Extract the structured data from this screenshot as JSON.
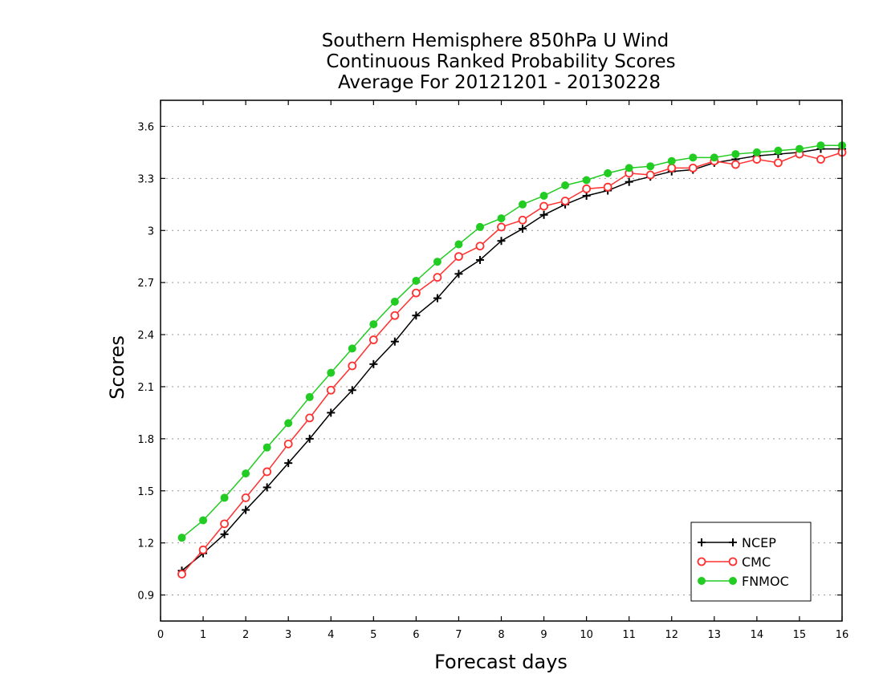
{
  "chart_data": {
    "type": "line",
    "title_lines": [
      "Southern Hemisphere 850hPa U Wind",
      "Continuous Ranked Probability Scores",
      "Average For 20121201 - 20130228"
    ],
    "xlabel": "Forecast days",
    "ylabel": "Scores",
    "xlim": [
      0,
      16
    ],
    "ylim": [
      0.75,
      3.75
    ],
    "xticks": [
      "0",
      "1",
      "2",
      "3",
      "4",
      "5",
      "6",
      "7",
      "8",
      "9",
      "10",
      "11",
      "12",
      "13",
      "14",
      "15",
      "16"
    ],
    "yticks": [
      "0.9",
      "1.2",
      "1.5",
      "1.8",
      "2.1",
      "2.4",
      "2.7",
      "3",
      "3.3",
      "3.6"
    ],
    "grid": true,
    "legend_position": "bottom-right",
    "x": [
      0.5,
      1,
      1.5,
      2,
      2.5,
      3,
      3.5,
      4,
      4.5,
      5,
      5.5,
      6,
      6.5,
      7,
      7.5,
      8,
      8.5,
      9,
      9.5,
      10,
      10.5,
      11,
      11.5,
      12,
      12.5,
      13,
      13.5,
      14,
      14.5,
      15,
      15.5,
      16
    ],
    "series": [
      {
        "name": "NCEP",
        "color": "#000000",
        "marker": "plus",
        "values": [
          1.04,
          1.14,
          1.25,
          1.39,
          1.52,
          1.66,
          1.8,
          1.95,
          2.08,
          2.23,
          2.36,
          2.51,
          2.61,
          2.75,
          2.83,
          2.94,
          3.01,
          3.09,
          3.15,
          3.2,
          3.23,
          3.28,
          3.31,
          3.34,
          3.35,
          3.39,
          3.41,
          3.43,
          3.44,
          3.45,
          3.47,
          3.47
        ]
      },
      {
        "name": "CMC",
        "color": "#ff3030",
        "marker": "open-circle",
        "values": [
          1.02,
          1.16,
          1.31,
          1.46,
          1.61,
          1.77,
          1.92,
          2.08,
          2.22,
          2.37,
          2.51,
          2.64,
          2.73,
          2.85,
          2.91,
          3.02,
          3.06,
          3.14,
          3.17,
          3.24,
          3.25,
          3.33,
          3.32,
          3.36,
          3.36,
          3.4,
          3.38,
          3.41,
          3.39,
          3.44,
          3.41,
          3.45
        ]
      },
      {
        "name": "FNMOC",
        "color": "#22cc22",
        "marker": "filled-circle",
        "values": [
          1.23,
          1.33,
          1.46,
          1.6,
          1.75,
          1.89,
          2.04,
          2.18,
          2.32,
          2.46,
          2.59,
          2.71,
          2.82,
          2.92,
          3.02,
          3.07,
          3.15,
          3.2,
          3.26,
          3.29,
          3.33,
          3.36,
          3.37,
          3.4,
          3.42,
          3.42,
          3.44,
          3.45,
          3.46,
          3.47,
          3.49,
          3.49
        ]
      }
    ]
  }
}
